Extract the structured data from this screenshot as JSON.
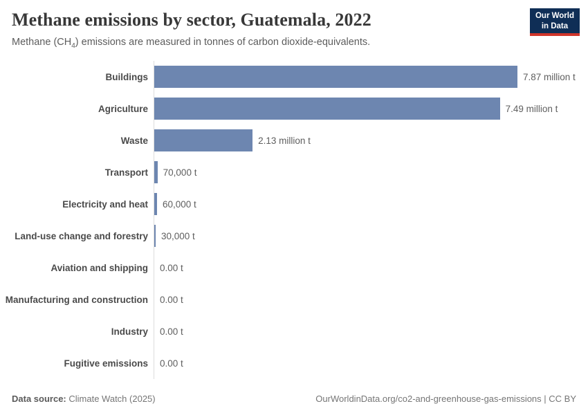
{
  "header": {
    "title": "Methane emissions by sector, Guatemala, 2022",
    "subtitle_prefix": "Methane (CH",
    "subtitle_sub": "4",
    "subtitle_suffix": ") emissions are measured in tonnes of carbon dioxide-equivalents.",
    "logo": {
      "line1": "Our World",
      "line2": "in Data"
    }
  },
  "chart_data": {
    "type": "bar",
    "orientation": "horizontal",
    "title": "Methane emissions by sector, Guatemala, 2022",
    "unit": "tonnes of carbon dioxide-equivalents",
    "grid": false,
    "legend": "none",
    "xlim_tonnes": [
      0,
      7870000
    ],
    "max_value_tonnes": 7870000,
    "bar_color": "#6d86b0",
    "axis_color": "#dcdcdc",
    "categories": [
      "Buildings",
      "Agriculture",
      "Waste",
      "Transport",
      "Electricity and heat",
      "Land-use change and forestry",
      "Aviation and shipping",
      "Manufacturing and construction",
      "Industry",
      "Fugitive emissions"
    ],
    "values": [
      7870000,
      7490000,
      2130000,
      70000,
      60000,
      30000,
      0,
      0,
      0,
      0
    ],
    "rows": [
      {
        "label": "Buildings",
        "value_tonnes": 7870000,
        "value_label": "7.87 million t"
      },
      {
        "label": "Agriculture",
        "value_tonnes": 7490000,
        "value_label": "7.49 million t"
      },
      {
        "label": "Waste",
        "value_tonnes": 2130000,
        "value_label": "2.13 million t"
      },
      {
        "label": "Transport",
        "value_tonnes": 70000,
        "value_label": "70,000 t"
      },
      {
        "label": "Electricity and heat",
        "value_tonnes": 60000,
        "value_label": "60,000 t"
      },
      {
        "label": "Land-use change and forestry",
        "value_tonnes": 30000,
        "value_label": "30,000 t"
      },
      {
        "label": "Aviation and shipping",
        "value_tonnes": 0,
        "value_label": "0.00 t"
      },
      {
        "label": "Manufacturing and construction",
        "value_tonnes": 0,
        "value_label": "0.00 t"
      },
      {
        "label": "Industry",
        "value_tonnes": 0,
        "value_label": "0.00 t"
      },
      {
        "label": "Fugitive emissions",
        "value_tonnes": 0,
        "value_label": "0.00 t"
      }
    ]
  },
  "footer": {
    "source_label": "Data source:",
    "source_value": "Climate Watch (2025)",
    "url_text": "OurWorldinData.org/co2-and-greenhouse-gas-emissions | CC BY"
  },
  "colors": {
    "bar": "#6d86b0",
    "axis": "#dcdcdc",
    "title_text": "#383838",
    "logo_bg": "#0f2e56",
    "logo_stripe": "#d0352b"
  }
}
